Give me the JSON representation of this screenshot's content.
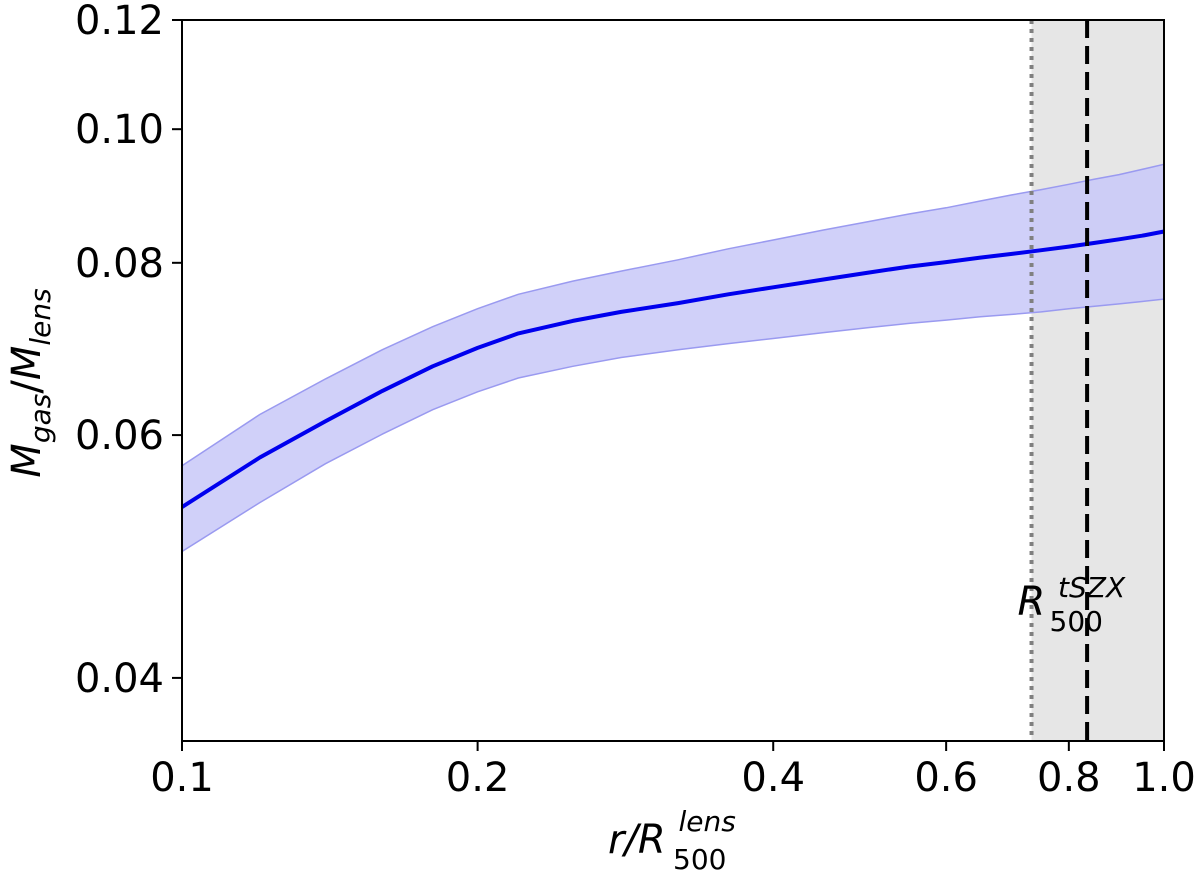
{
  "chart_data": {
    "type": "line",
    "x_scale": "log",
    "y_scale": "log",
    "xlim": [
      0.1,
      1.0
    ],
    "ylim": [
      0.036,
      0.12
    ],
    "x_ticks": [
      0.1,
      0.2,
      0.4,
      0.6,
      0.8,
      1.0
    ],
    "x_tick_labels": [
      "0.1",
      "0.2",
      "0.4",
      "0.6",
      "0.8",
      "1.0"
    ],
    "y_ticks": [
      0.04,
      0.06,
      0.08,
      0.1,
      0.12
    ],
    "y_tick_labels": [
      "0.04",
      "0.06",
      "0.08",
      "0.10",
      "0.12"
    ],
    "xlabel": {
      "base": "r/R",
      "sub": "500",
      "sup": "lens"
    },
    "ylabel": {
      "m1": "M",
      "sub1": "gas",
      "slash": "/",
      "m2": "M",
      "sub2": "lens"
    },
    "grid": false,
    "series": [
      {
        "x": [
          0.1,
          0.12,
          0.14,
          0.16,
          0.18,
          0.2,
          0.22,
          0.25,
          0.28,
          0.32,
          0.36,
          0.4,
          0.45,
          0.5,
          0.55,
          0.6,
          0.65,
          0.7,
          0.75,
          0.8,
          0.85,
          0.9,
          0.95,
          1.0
        ],
        "y": [
          0.0532,
          0.0578,
          0.0614,
          0.0646,
          0.0673,
          0.0694,
          0.0711,
          0.0726,
          0.0737,
          0.0748,
          0.0759,
          0.0768,
          0.0778,
          0.0787,
          0.0795,
          0.0801,
          0.0807,
          0.0812,
          0.0817,
          0.0822,
          0.0827,
          0.0832,
          0.0837,
          0.0843
        ],
        "y_low": [
          0.0494,
          0.0536,
          0.0572,
          0.0601,
          0.0626,
          0.0645,
          0.066,
          0.0673,
          0.0683,
          0.0692,
          0.0699,
          0.0705,
          0.0712,
          0.0718,
          0.0723,
          0.0727,
          0.0731,
          0.0734,
          0.0737,
          0.0741,
          0.0744,
          0.0747,
          0.075,
          0.0753
        ],
        "y_high": [
          0.057,
          0.0621,
          0.0659,
          0.0692,
          0.0719,
          0.0741,
          0.0759,
          0.0776,
          0.0789,
          0.0804,
          0.0819,
          0.0831,
          0.0845,
          0.0857,
          0.0868,
          0.0877,
          0.0887,
          0.0896,
          0.0904,
          0.0912,
          0.092,
          0.0927,
          0.0935,
          0.0943
        ],
        "color": "#0000ee",
        "band_color": "#c8c8f8"
      }
    ],
    "shaded_region": {
      "x_from": 0.733,
      "x_to": 1.0,
      "color": "#e6e6e6"
    },
    "vlines": [
      {
        "x": 0.733,
        "style": "dotted",
        "color": "#808080"
      },
      {
        "x": 0.835,
        "style": "dashed",
        "color": "#000000"
      }
    ],
    "annotation": {
      "x": 0.733,
      "y": 0.0455,
      "base": "R",
      "sup": "tSZX",
      "sub": "500"
    }
  }
}
